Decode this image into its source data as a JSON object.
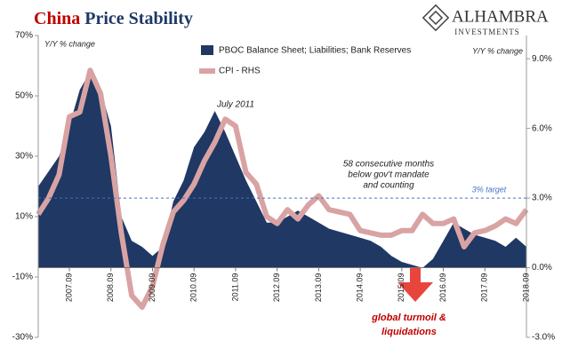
{
  "chart_data": {
    "type": "area_line",
    "title": [
      "China",
      "Price Stability"
    ],
    "logo": [
      "ALHAMBRA",
      "INVESTMENTS"
    ],
    "ylabel": "Y/Y % change",
    "y2label": "Y/Y % change",
    "categories": [
      null,
      null,
      null,
      "2007.09",
      null,
      null,
      null,
      "2008.09",
      null,
      null,
      null,
      "2009.09",
      null,
      null,
      null,
      "2010.09",
      null,
      null,
      null,
      "2011.09",
      null,
      null,
      null,
      "2012.09",
      null,
      null,
      null,
      "2013.09",
      null,
      null,
      null,
      "2014.09",
      null,
      null,
      null,
      "2015.09",
      null,
      null,
      null,
      "2016.09",
      null,
      null,
      null,
      "2017.09",
      null,
      null,
      null,
      "2018.09"
    ],
    "series": [
      {
        "name": "PBOC Balance Sheet; Liabilities; Bank Reserves",
        "color": "#1f3864",
        "kind": "area",
        "values": [
          20,
          25,
          30,
          40,
          52,
          58,
          52,
          40,
          10,
          2,
          0,
          -3,
          0,
          15,
          22,
          33,
          38,
          45,
          38,
          30,
          22,
          15,
          8,
          8,
          10,
          12,
          10,
          8,
          6,
          5,
          4,
          3,
          2,
          0,
          -3,
          -5,
          -6,
          -7,
          -4,
          2,
          8,
          6,
          4,
          3,
          2,
          0,
          3,
          0
        ]
      },
      {
        "name": "CPI - RHS",
        "color": "#d9a3a3",
        "kind": "line",
        "axis": "y2",
        "values": [
          2.3,
          3.0,
          4.0,
          6.5,
          6.7,
          8.5,
          7.5,
          4.8,
          1.5,
          -1.2,
          -1.7,
          -0.8,
          1.0,
          2.4,
          2.9,
          3.6,
          4.6,
          5.4,
          6.4,
          6.1,
          4.1,
          3.6,
          2.2,
          1.9,
          2.5,
          2.1,
          2.7,
          3.1,
          2.5,
          2.4,
          2.3,
          1.6,
          1.5,
          1.4,
          1.4,
          1.6,
          1.6,
          2.3,
          1.9,
          1.9,
          2.1,
          0.9,
          1.5,
          1.6,
          1.8,
          2.1,
          1.9,
          2.5
        ]
      }
    ],
    "ylim": [
      -30,
      70
    ],
    "yticks": [
      {
        "value": -30,
        "label": "-30%"
      },
      {
        "value": -10,
        "label": "-10%"
      },
      {
        "value": 10,
        "label": "10%"
      },
      {
        "value": 30,
        "label": "30%"
      },
      {
        "value": 50,
        "label": "50%"
      },
      {
        "value": 70,
        "label": "70%"
      }
    ],
    "y2lim": [
      -3,
      10
    ],
    "y2ticks": [
      {
        "value": -3,
        "label": "-3.0%"
      },
      {
        "value": 0,
        "label": "0.0%"
      },
      {
        "value": 3,
        "label": "3.0%"
      },
      {
        "value": 6,
        "label": "6.0%"
      },
      {
        "value": 9,
        "label": "9.0%"
      }
    ],
    "target": {
      "value": 3,
      "label": "3% target"
    },
    "annotations": {
      "peak": "July 2011",
      "note": [
        "58 consecutive months",
        "below gov't mandate",
        "and counting"
      ],
      "turmoil": [
        "global turmoil &",
        "liquidations"
      ]
    },
    "legend": "top"
  }
}
